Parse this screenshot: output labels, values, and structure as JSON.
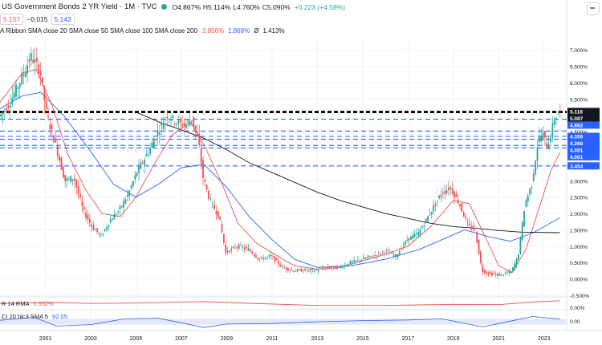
{
  "header": {
    "title": "US Government Bonds 2 YR Yield · 1M · TVC",
    "ohlc": {
      "open": "O4.867%",
      "high": "H5.114%",
      "low": "L4.760%",
      "close": "C5.090%",
      "change": "+0.223 (+4.58%)"
    },
    "bid": "5.157",
    "spread": "−0.015",
    "ask": "5.142",
    "ribbon_label": "A Ribbon SMA close 20 SMA close 50 SMA close 100 SMA close 200",
    "ribbon_values": [
      "3.856%",
      "1.868%",
      "Ø",
      "1.413%"
    ]
  },
  "colors": {
    "up": "#26a69a",
    "down": "#ef5350",
    "sma20": "#ef5350",
    "sma50": "#2962ff",
    "sma200": "#131722",
    "level_line": "#2962ff",
    "dashed_black": "#000000"
  },
  "panes": {
    "atr_label": "R 14 RMA",
    "atr_value": "0.552%",
    "cci_label": "CI 20 hlc3 SMA 5",
    "cci_value": "92.05"
  },
  "chart_data": {
    "type": "candlestick",
    "title": "US Government Bonds 2 YR Yield · 1M · TVC",
    "x": [
      "2001",
      "2003",
      "2005",
      "2007",
      "2009",
      "2011",
      "2013",
      "2015",
      "2017",
      "2019",
      "2021",
      "2023"
    ],
    "xlim": [
      1999.0,
      2024.0
    ],
    "ylim": [
      -0.5,
      7.25
    ],
    "yticks": [
      "7.000%",
      "6.500%",
      "6.000%",
      "5.500%",
      "4.500%",
      "4.000%",
      "3.500%",
      "3.000%",
      "2.500%",
      "2.000%",
      "1.500%",
      "1.000%",
      "0.500%",
      "0.000%",
      "-0.500%"
    ],
    "ytick_values": [
      7.0,
      6.5,
      6.0,
      5.5,
      4.5,
      4.0,
      3.5,
      3.0,
      2.5,
      2.0,
      1.5,
      1.0,
      0.5,
      0.0,
      -0.5
    ],
    "level_labels": [
      {
        "value": 5.118,
        "text": "5.118",
        "style": "black"
      },
      {
        "value": 5.087,
        "text": "5.087",
        "style": "black"
      },
      {
        "value": 4.882,
        "text": "4.882",
        "style": "blue"
      },
      {
        "value": 4.359,
        "text": "4.359",
        "style": "blue"
      },
      {
        "value": 4.268,
        "text": "4.268",
        "style": "blue"
      },
      {
        "value": 4.081,
        "text": "4.081",
        "style": "blue"
      },
      {
        "value": 4.001,
        "text": "4.001",
        "style": "blue"
      },
      {
        "value": 3.454,
        "text": "3.454",
        "style": "blue"
      }
    ],
    "dashed_levels": [
      5.118,
      5.087,
      4.882,
      4.52,
      4.359,
      4.268,
      4.081,
      4.001,
      3.454
    ],
    "price_path": [
      [
        1999.0,
        4.95
      ],
      [
        1999.4,
        5.3
      ],
      [
        1999.9,
        6.0
      ],
      [
        2000.4,
        6.8
      ],
      [
        2000.8,
        6.4
      ],
      [
        2001.1,
        5.0
      ],
      [
        2001.5,
        4.1
      ],
      [
        2001.9,
        3.0
      ],
      [
        2002.3,
        3.1
      ],
      [
        2002.7,
        2.1
      ],
      [
        2003.1,
        1.6
      ],
      [
        2003.5,
        1.3
      ],
      [
        2003.9,
        1.8
      ],
      [
        2004.3,
        2.1
      ],
      [
        2004.7,
        2.6
      ],
      [
        2005.1,
        3.3
      ],
      [
        2005.6,
        3.9
      ],
      [
        2006.0,
        4.5
      ],
      [
        2006.4,
        5.0
      ],
      [
        2006.8,
        4.8
      ],
      [
        2007.2,
        4.7
      ],
      [
        2007.5,
        4.9
      ],
      [
        2007.8,
        4.2
      ],
      [
        2008.0,
        3.1
      ],
      [
        2008.3,
        2.4
      ],
      [
        2008.7,
        1.9
      ],
      [
        2009.0,
        0.8
      ],
      [
        2009.5,
        1.0
      ],
      [
        2010.0,
        0.9
      ],
      [
        2010.5,
        0.6
      ],
      [
        2011.0,
        0.7
      ],
      [
        2011.5,
        0.35
      ],
      [
        2012.0,
        0.25
      ],
      [
        2012.5,
        0.27
      ],
      [
        2013.0,
        0.26
      ],
      [
        2013.5,
        0.35
      ],
      [
        2014.0,
        0.35
      ],
      [
        2014.5,
        0.5
      ],
      [
        2015.0,
        0.6
      ],
      [
        2015.5,
        0.7
      ],
      [
        2016.0,
        0.85
      ],
      [
        2016.5,
        0.7
      ],
      [
        2017.0,
        1.2
      ],
      [
        2017.5,
        1.4
      ],
      [
        2018.0,
        2.0
      ],
      [
        2018.5,
        2.6
      ],
      [
        2018.9,
        2.8
      ],
      [
        2019.3,
        2.3
      ],
      [
        2019.7,
        1.6
      ],
      [
        2020.0,
        1.5
      ],
      [
        2020.3,
        0.25
      ],
      [
        2020.7,
        0.15
      ],
      [
        2021.1,
        0.12
      ],
      [
        2021.6,
        0.22
      ],
      [
        2021.9,
        0.7
      ],
      [
        2022.2,
        2.3
      ],
      [
        2022.5,
        2.9
      ],
      [
        2022.8,
        4.3
      ],
      [
        2023.0,
        4.4
      ],
      [
        2023.2,
        4.0
      ],
      [
        2023.5,
        4.9
      ],
      [
        2023.7,
        5.09
      ]
    ],
    "series": [
      {
        "name": "SMA 20",
        "values": [
          [
            1999.0,
            5.4
          ],
          [
            2000.0,
            6.3
          ],
          [
            2000.6,
            6.4
          ],
          [
            2001.3,
            5.3
          ],
          [
            2002.0,
            3.8
          ],
          [
            2002.8,
            2.7
          ],
          [
            2003.5,
            2.0
          ],
          [
            2004.3,
            1.9
          ],
          [
            2005.0,
            2.5
          ],
          [
            2005.8,
            3.5
          ],
          [
            2006.6,
            4.4
          ],
          [
            2007.4,
            4.8
          ],
          [
            2008.0,
            4.1
          ],
          [
            2008.8,
            2.9
          ],
          [
            2009.5,
            1.7
          ],
          [
            2010.3,
            1.1
          ],
          [
            2011.0,
            0.8
          ],
          [
            2012.0,
            0.4
          ],
          [
            2013.0,
            0.3
          ],
          [
            2014.0,
            0.35
          ],
          [
            2015.0,
            0.55
          ],
          [
            2016.0,
            0.75
          ],
          [
            2017.0,
            1.0
          ],
          [
            2018.0,
            1.6
          ],
          [
            2019.0,
            2.4
          ],
          [
            2019.7,
            2.3
          ],
          [
            2020.4,
            1.3
          ],
          [
            2021.0,
            0.4
          ],
          [
            2021.6,
            0.2
          ],
          [
            2022.2,
            0.9
          ],
          [
            2022.8,
            2.2
          ],
          [
            2023.3,
            3.3
          ],
          [
            2023.7,
            3.86
          ]
        ]
      },
      {
        "name": "SMA 50",
        "values": [
          [
            1999.0,
            5.2
          ],
          [
            2000.0,
            5.6
          ],
          [
            2000.8,
            5.7
          ],
          [
            2001.8,
            5.0
          ],
          [
            2003.0,
            3.9
          ],
          [
            2004.0,
            2.9
          ],
          [
            2005.0,
            2.5
          ],
          [
            2006.0,
            2.9
          ],
          [
            2007.0,
            3.4
          ],
          [
            2008.0,
            3.5
          ],
          [
            2009.0,
            2.8
          ],
          [
            2010.0,
            1.9
          ],
          [
            2011.0,
            1.2
          ],
          [
            2012.0,
            0.6
          ],
          [
            2013.0,
            0.35
          ],
          [
            2014.5,
            0.4
          ],
          [
            2016.0,
            0.6
          ],
          [
            2017.5,
            0.9
          ],
          [
            2018.5,
            1.2
          ],
          [
            2019.5,
            1.5
          ],
          [
            2020.5,
            1.3
          ],
          [
            2021.5,
            1.15
          ],
          [
            2022.5,
            1.4
          ],
          [
            2023.7,
            1.87
          ]
        ]
      },
      {
        "name": "SMA 200",
        "values": [
          [
            2005.0,
            5.1
          ],
          [
            2006.0,
            4.8
          ],
          [
            2007.0,
            4.55
          ],
          [
            2008.0,
            4.3
          ],
          [
            2009.0,
            3.95
          ],
          [
            2010.0,
            3.55
          ],
          [
            2011.0,
            3.25
          ],
          [
            2012.0,
            2.95
          ],
          [
            2013.0,
            2.65
          ],
          [
            2014.0,
            2.4
          ],
          [
            2015.0,
            2.2
          ],
          [
            2016.0,
            2.0
          ],
          [
            2017.0,
            1.85
          ],
          [
            2018.0,
            1.7
          ],
          [
            2019.0,
            1.6
          ],
          [
            2020.0,
            1.55
          ],
          [
            2021.0,
            1.48
          ],
          [
            2022.0,
            1.43
          ],
          [
            2023.7,
            1.413
          ]
        ]
      }
    ],
    "atr": [
      [
        1999.0,
        0.35
      ],
      [
        2001.5,
        0.42
      ],
      [
        2003.0,
        0.35
      ],
      [
        2005.0,
        0.38
      ],
      [
        2008.0,
        0.48
      ],
      [
        2010.0,
        0.36
      ],
      [
        2013.0,
        0.2
      ],
      [
        2016.0,
        0.2
      ],
      [
        2019.0,
        0.28
      ],
      [
        2021.0,
        0.26
      ],
      [
        2022.5,
        0.45
      ],
      [
        2023.7,
        0.552
      ]
    ],
    "cci": [
      [
        1999.0,
        50
      ],
      [
        2000.5,
        150
      ],
      [
        2001.5,
        -150
      ],
      [
        2003.0,
        -100
      ],
      [
        2004.5,
        100
      ],
      [
        2006.0,
        120
      ],
      [
        2008.0,
        -200
      ],
      [
        2009.0,
        -80
      ],
      [
        2011.0,
        -60
      ],
      [
        2013.0,
        0
      ],
      [
        2015.0,
        40
      ],
      [
        2017.0,
        60
      ],
      [
        2018.5,
        100
      ],
      [
        2020.3,
        -180
      ],
      [
        2021.5,
        20
      ],
      [
        2022.5,
        180
      ],
      [
        2023.7,
        92.05
      ]
    ],
    "cci_tick": "0.00",
    "atr_tick": "0.00%",
    "last_label_pos": 5.09
  }
}
